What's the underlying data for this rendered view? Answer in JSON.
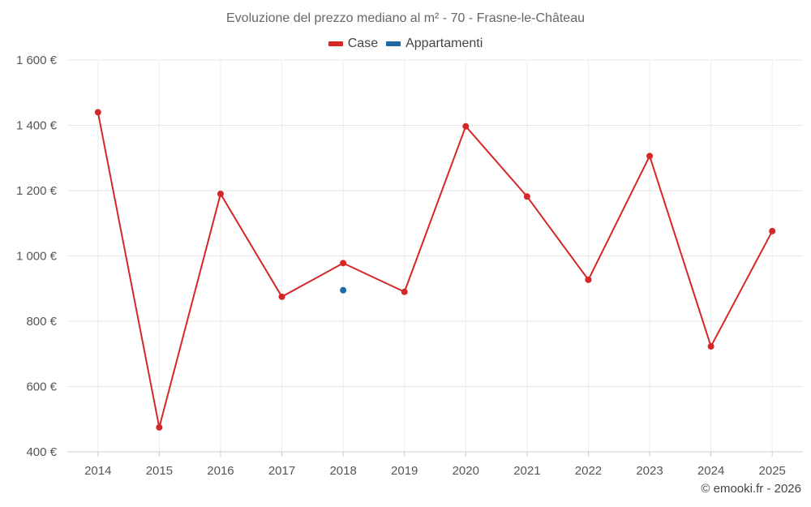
{
  "chart_data": {
    "type": "line",
    "title": "Evoluzione del prezzo mediano al m² - 70 - Frasne-le-Château",
    "categories": [
      "2014",
      "2015",
      "2016",
      "2017",
      "2018",
      "2019",
      "2020",
      "2021",
      "2022",
      "2023",
      "2024",
      "2025"
    ],
    "series": [
      {
        "name": "Case",
        "color": "#d62728",
        "values": [
          1440,
          475,
          1190,
          875,
          978,
          890,
          1397,
          1182,
          927,
          1306,
          723,
          1076
        ]
      },
      {
        "name": "Appartamenti",
        "color": "#1f6aa5",
        "values": [
          null,
          null,
          null,
          null,
          895,
          null,
          null,
          null,
          null,
          null,
          null,
          null
        ]
      }
    ],
    "ylim": [
      400,
      1600
    ],
    "yticks": [
      400,
      600,
      800,
      1000,
      1200,
      1400,
      1600
    ],
    "ytick_labels": [
      "400 €",
      "600 €",
      "800 €",
      "1 000 €",
      "1 200 €",
      "1 400 €",
      "1 600 €"
    ],
    "xlabel": "",
    "ylabel": "",
    "grid": true,
    "legend_position": "top-center"
  },
  "credit": "© emooki.fr - 2026"
}
